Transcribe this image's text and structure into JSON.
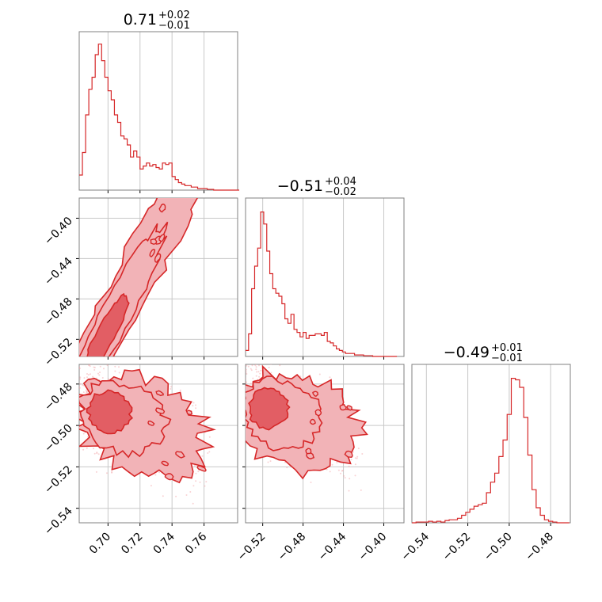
{
  "colors": {
    "accent": "#d62728",
    "fill_inner": "#e25e64",
    "fill_outer": "#f2b3b7",
    "scatter": "#f4a6aa",
    "grid": "#c8c8c8",
    "frame": "#808080"
  },
  "chart_data": [
    {
      "type": "histogram",
      "id": "hist-p1",
      "title": {
        "value": "0.71",
        "upper": "+0.02",
        "lower": "−0.01"
      },
      "xlim": [
        0.682,
        0.781
      ],
      "xticks": [
        0.7,
        0.72,
        0.74,
        0.76
      ],
      "x": [
        0.682,
        0.684,
        0.686,
        0.688,
        0.69,
        0.692,
        0.694,
        0.696,
        0.698,
        0.7,
        0.702,
        0.704,
        0.706,
        0.708,
        0.71,
        0.712,
        0.714,
        0.716,
        0.718,
        0.72,
        0.722,
        0.724,
        0.726,
        0.728,
        0.73,
        0.732,
        0.734,
        0.736,
        0.738,
        0.74,
        0.742,
        0.744,
        0.746,
        0.748,
        0.75,
        0.752,
        0.754,
        0.756,
        0.758,
        0.76,
        0.762,
        0.764,
        0.766,
        0.768,
        0.77,
        0.772,
        0.774,
        0.776,
        0.778,
        0.78
      ],
      "values": [
        0.1,
        0.25,
        0.5,
        0.67,
        0.75,
        0.9,
        0.97,
        0.86,
        0.75,
        0.66,
        0.6,
        0.5,
        0.45,
        0.36,
        0.34,
        0.3,
        0.22,
        0.26,
        0.22,
        0.14,
        0.16,
        0.18,
        0.16,
        0.17,
        0.15,
        0.14,
        0.18,
        0.17,
        0.18,
        0.09,
        0.07,
        0.05,
        0.04,
        0.03,
        0.03,
        0.02,
        0.02,
        0.01,
        0.01,
        0.01,
        0.005,
        0.005,
        0,
        0,
        0,
        0,
        0,
        0,
        0,
        0
      ]
    },
    {
      "type": "histogram",
      "id": "hist-p2",
      "title": {
        "value": "−0.51",
        "upper": "+0.04",
        "lower": "−0.02"
      },
      "xlim": [
        -0.537,
        -0.38
      ],
      "xticks": [
        -0.52,
        -0.48,
        -0.44,
        -0.4
      ],
      "x": [
        -0.537,
        -0.534,
        -0.531,
        -0.528,
        -0.525,
        -0.522,
        -0.519,
        -0.516,
        -0.513,
        -0.51,
        -0.507,
        -0.504,
        -0.501,
        -0.498,
        -0.495,
        -0.492,
        -0.489,
        -0.486,
        -0.483,
        -0.48,
        -0.477,
        -0.474,
        -0.471,
        -0.468,
        -0.465,
        -0.462,
        -0.459,
        -0.456,
        -0.453,
        -0.45,
        -0.447,
        -0.444,
        -0.441,
        -0.438,
        -0.435,
        -0.432,
        -0.429,
        -0.426,
        -0.423,
        -0.42,
        -0.417,
        -0.414,
        -0.411,
        -0.408,
        -0.405,
        -0.402,
        -0.399,
        -0.396,
        -0.393,
        -0.39
      ],
      "values": [
        0.04,
        0.15,
        0.45,
        0.6,
        0.72,
        0.96,
        0.88,
        0.7,
        0.55,
        0.45,
        0.42,
        0.4,
        0.35,
        0.25,
        0.22,
        0.28,
        0.18,
        0.16,
        0.13,
        0.16,
        0.12,
        0.14,
        0.14,
        0.15,
        0.15,
        0.14,
        0.16,
        0.1,
        0.09,
        0.07,
        0.05,
        0.04,
        0.03,
        0.02,
        0.02,
        0.02,
        0.01,
        0.01,
        0.01,
        0.005,
        0.005,
        0.005,
        0,
        0,
        0,
        0,
        0,
        0,
        0,
        0
      ]
    },
    {
      "type": "histogram",
      "id": "hist-p3",
      "title": {
        "value": "−0.49",
        "upper": "+0.01",
        "lower": "−0.01"
      },
      "xlim": [
        -0.547,
        -0.4705
      ],
      "xticks": [
        -0.54,
        -0.52,
        -0.5,
        -0.48
      ],
      "x": [
        -0.547,
        -0.545,
        -0.543,
        -0.541,
        -0.539,
        -0.537,
        -0.535,
        -0.533,
        -0.531,
        -0.529,
        -0.527,
        -0.525,
        -0.523,
        -0.521,
        -0.519,
        -0.517,
        -0.515,
        -0.513,
        -0.511,
        -0.509,
        -0.507,
        -0.505,
        -0.503,
        -0.501,
        -0.499,
        -0.497,
        -0.495,
        -0.493,
        -0.491,
        -0.489,
        -0.487,
        -0.485,
        -0.483,
        -0.481,
        -0.479,
        -0.477,
        -0.475,
        -0.473
      ],
      "values": [
        0,
        0.005,
        0.005,
        0.005,
        0.01,
        0.005,
        0.01,
        0.005,
        0.015,
        0.02,
        0.02,
        0.03,
        0.05,
        0.07,
        0.09,
        0.11,
        0.12,
        0.13,
        0.2,
        0.27,
        0.33,
        0.44,
        0.55,
        0.72,
        0.96,
        0.95,
        0.9,
        0.7,
        0.45,
        0.22,
        0.1,
        0.05,
        0.02,
        0.01,
        0.005,
        0,
        0,
        0
      ]
    },
    {
      "type": "scatter",
      "id": "joint-p1-p2",
      "xlim": [
        0.682,
        0.781
      ],
      "ylim": [
        -0.537,
        -0.38
      ],
      "xticks": [
        0.7,
        0.72,
        0.74,
        0.76
      ],
      "yticks": [
        -0.52,
        -0.48,
        -0.44,
        -0.4
      ],
      "trend": {
        "slope": 3.0,
        "intercept": -2.611,
        "x_range": [
          0.685,
          0.76
        ],
        "spread": 0.004
      }
    },
    {
      "type": "scatter",
      "id": "joint-p1-p3",
      "xlim": [
        0.682,
        0.781
      ],
      "ylim": [
        -0.547,
        -0.4705
      ],
      "xticks": [
        0.7,
        0.72,
        0.74,
        0.76
      ],
      "yticks": [
        -0.54,
        -0.52,
        -0.5,
        -0.48
      ],
      "trend": {
        "slope": -0.35,
        "intercept": -0.248,
        "x_range": [
          0.688,
          0.76
        ],
        "spread": 0.006
      }
    },
    {
      "type": "scatter",
      "id": "joint-p2-p3",
      "xlim": [
        -0.537,
        -0.38
      ],
      "ylim": [
        -0.547,
        -0.4705
      ],
      "xticks": [
        -0.52,
        -0.48,
        -0.44,
        -0.4
      ],
      "yticks": [
        -0.54,
        -0.52,
        -0.5,
        -0.48
      ],
      "trend": {
        "slope": -0.22,
        "intercept": -0.605,
        "x_range": [
          -0.533,
          -0.43
        ],
        "spread": 0.006
      }
    }
  ]
}
